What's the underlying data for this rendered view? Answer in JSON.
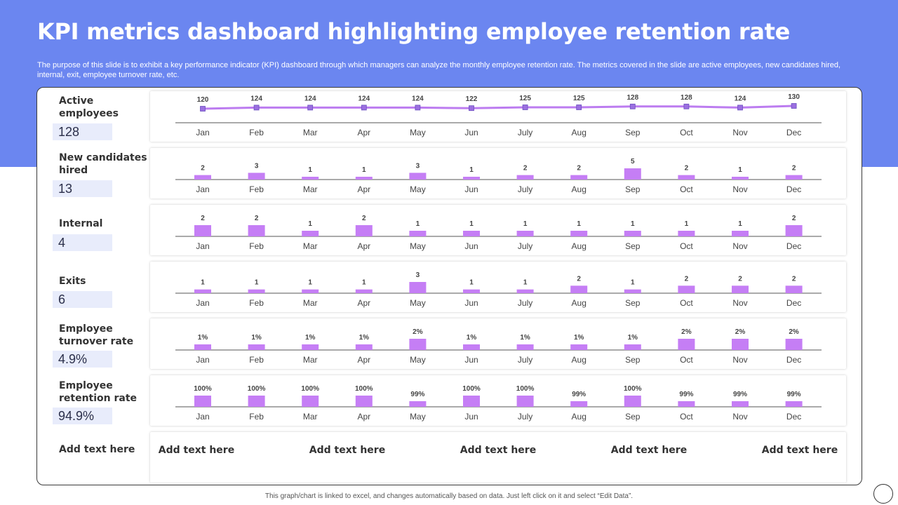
{
  "slide": {
    "title": "KPI metrics dashboard highlighting employee retention rate",
    "subtitle": "The purpose of this slide is to exhibit a key performance indicator (KPI) dashboard through which managers can analyze the monthly employee retention rate. The metrics covered in the slide are active employees, new candidates hired, internal, exit, employee turnover rate, etc.",
    "footer": "This graph/chart is linked to excel, and changes automatically based on data. Just left click on it and select “Edit Data”."
  },
  "metrics": [
    {
      "label": "Active employees",
      "value": "128"
    },
    {
      "label": "New candidates hired",
      "value": "13"
    },
    {
      "label": "Internal",
      "value": "4"
    },
    {
      "label": "Exits",
      "value": "6"
    },
    {
      "label": "Employee turnover rate",
      "value": "4.9%"
    },
    {
      "label": "Employee retention rate",
      "value": "94.9%"
    }
  ],
  "add_row": {
    "label": "Add text here",
    "items": [
      "Add text here",
      "Add text here",
      "Add text here",
      "Add text here",
      "Add text here"
    ]
  },
  "colors": {
    "bar": "#c57ef5",
    "line": "#bc7cf0",
    "marker": "#9b6fe0",
    "band": "#6b86f0",
    "value_box": "#e8ecfb"
  },
  "chart_data": [
    {
      "type": "line",
      "categories": [
        "Jan",
        "Feb",
        "Mar",
        "Apr",
        "May",
        "Jun",
        "July",
        "Aug",
        "Sep",
        "Oct",
        "Nov",
        "Dec"
      ],
      "values": [
        120,
        124,
        124,
        124,
        124,
        122,
        125,
        125,
        128,
        128,
        124,
        130
      ],
      "labels": [
        "120",
        "124",
        "124",
        "124",
        "124",
        "122",
        "125",
        "125",
        "128",
        "128",
        "124",
        "130"
      ],
      "ylim": [
        0,
        130
      ]
    },
    {
      "type": "bar",
      "categories": [
        "Jan",
        "Feb",
        "Mar",
        "Apr",
        "May",
        "Jun",
        "July",
        "Aug",
        "Sep",
        "Oct",
        "Nov",
        "Dec"
      ],
      "values": [
        2,
        3,
        1,
        1,
        3,
        1,
        2,
        2,
        5,
        2,
        1,
        2
      ],
      "labels": [
        "2",
        "3",
        "1",
        "1",
        "3",
        "1",
        "2",
        "2",
        "5",
        "2",
        "1",
        "2"
      ],
      "ylim": [
        0,
        5
      ]
    },
    {
      "type": "bar",
      "categories": [
        "Jan",
        "Feb",
        "Mar",
        "Apr",
        "May",
        "Jun",
        "July",
        "Aug",
        "Sep",
        "Oct",
        "Nov",
        "Dec"
      ],
      "values": [
        2,
        2,
        1,
        2,
        1,
        1,
        1,
        1,
        1,
        1,
        1,
        2
      ],
      "labels": [
        "2",
        "2",
        "1",
        "2",
        "1",
        "1",
        "1",
        "1",
        "1",
        "1",
        "1",
        "2"
      ],
      "ylim": [
        0,
        2
      ]
    },
    {
      "type": "bar",
      "categories": [
        "Jan",
        "Feb",
        "Mar",
        "Apr",
        "May",
        "Jun",
        "July",
        "Aug",
        "Sep",
        "Oct",
        "Nov",
        "Dec"
      ],
      "values": [
        1,
        1,
        1,
        1,
        3,
        1,
        1,
        2,
        1,
        2,
        2,
        2
      ],
      "labels": [
        "1",
        "1",
        "1",
        "1",
        "3",
        "1",
        "1",
        "2",
        "1",
        "2",
        "2",
        "2"
      ],
      "ylim": [
        0,
        3
      ]
    },
    {
      "type": "bar",
      "categories": [
        "Jan",
        "Feb",
        "Mar",
        "Apr",
        "May",
        "Jun",
        "July",
        "Aug",
        "Sep",
        "Oct",
        "Nov",
        "Dec"
      ],
      "values": [
        1,
        1,
        1,
        1,
        2,
        1,
        1,
        1,
        1,
        2,
        2,
        2
      ],
      "labels": [
        "1%",
        "1%",
        "1%",
        "1%",
        "2%",
        "1%",
        "1%",
        "1%",
        "1%",
        "2%",
        "2%",
        "2%"
      ],
      "ylim": [
        0,
        2
      ]
    },
    {
      "type": "bar",
      "categories": [
        "Jan",
        "Feb",
        "Mar",
        "Apr",
        "May",
        "Jun",
        "July",
        "Aug",
        "Sep",
        "Oct",
        "Nov",
        "Dec"
      ],
      "values": [
        100,
        100,
        100,
        100,
        99,
        100,
        100,
        99,
        100,
        99,
        99,
        99
      ],
      "labels": [
        "100%",
        "100%",
        "100%",
        "100%",
        "99%",
        "100%",
        "100%",
        "99%",
        "100%",
        "99%",
        "99%",
        "99%"
      ],
      "ylim": [
        98,
        100
      ]
    }
  ]
}
